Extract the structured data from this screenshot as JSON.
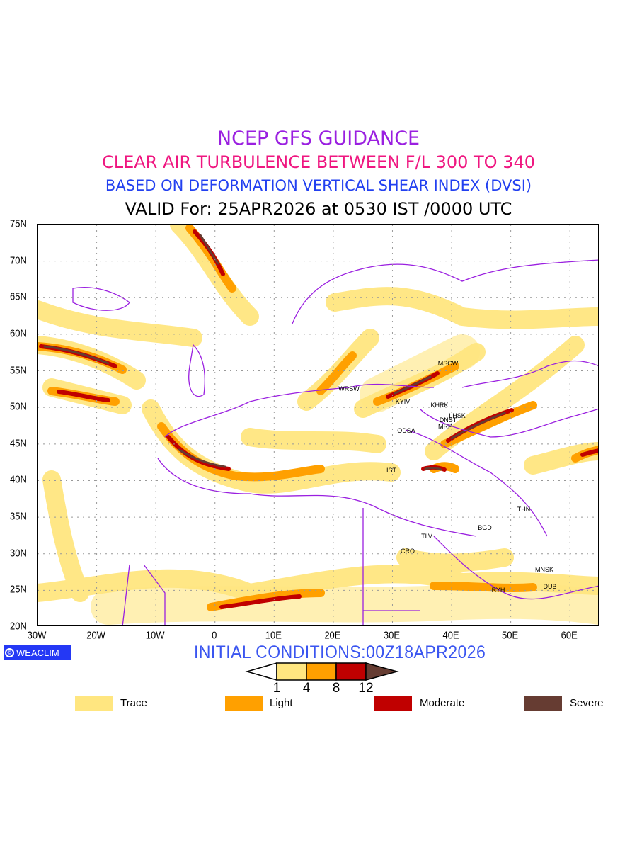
{
  "header": {
    "line1": "NCEP GFS GUIDANCE",
    "line2": "CLEAR AIR TURBULENCE BETWEEN F/L 300 TO 340",
    "line3": "BASED ON DEFORMATION VERTICAL SHEAR INDEX (DVSI)",
    "line4": "VALID For: 25APR2026 at 0530 IST /0000 UTC"
  },
  "axes": {
    "lat_labels": [
      "75N",
      "70N",
      "65N",
      "60N",
      "55N",
      "50N",
      "45N",
      "40N",
      "35N",
      "30N",
      "25N",
      "20N"
    ],
    "lon_labels": [
      "30W",
      "20W",
      "10W",
      "0",
      "10E",
      "20E",
      "30E",
      "40E",
      "50E",
      "60E"
    ]
  },
  "stations": [
    "MSCW",
    "WRSW",
    "KYIV",
    "KHRK",
    "LHSK",
    "DNST",
    "MRP",
    "ODSA",
    "IST",
    "THN",
    "BGD",
    "TLV",
    "CRO",
    "MNSK",
    "RYH",
    "DUB"
  ],
  "footer": {
    "brand": "WEACLIM",
    "brand_symbol": "©",
    "initial_conditions": "INITIAL CONDITIONS:00Z18APR2026"
  },
  "colorbar": {
    "labels": [
      "1",
      "4",
      "8",
      "12"
    ],
    "colors": [
      "#ffe680",
      "#ffa000",
      "#c00000",
      "#663c32"
    ]
  },
  "legend": [
    {
      "label": "Trace",
      "color": "#ffe680"
    },
    {
      "label": "Light",
      "color": "#ffa000"
    },
    {
      "label": "Moderate",
      "color": "#c00000"
    },
    {
      "label": "Severe",
      "color": "#663c32"
    }
  ],
  "colors": {
    "border": "#9a1fe0"
  }
}
